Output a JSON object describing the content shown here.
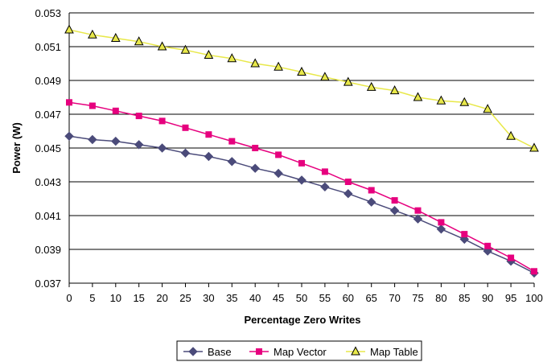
{
  "chart_data": {
    "type": "line",
    "title": "",
    "xlabel": "Percentage Zero Writes",
    "ylabel": "Power (W)",
    "x": [
      0,
      5,
      10,
      15,
      20,
      25,
      30,
      35,
      40,
      45,
      50,
      55,
      60,
      65,
      70,
      75,
      80,
      85,
      90,
      95,
      100
    ],
    "xlim": [
      0,
      100
    ],
    "ylim": [
      0.037,
      0.053
    ],
    "x_ticks": [
      "0",
      "5",
      "10",
      "15",
      "20",
      "25",
      "30",
      "35",
      "40",
      "45",
      "50",
      "55",
      "60",
      "65",
      "70",
      "75",
      "80",
      "85",
      "90",
      "95",
      "100"
    ],
    "y_ticks": [
      "0.037",
      "0.039",
      "0.041",
      "0.043",
      "0.045",
      "0.047",
      "0.049",
      "0.051",
      "0.053"
    ],
    "grid": "horizontal",
    "legend_position": "bottom",
    "series": [
      {
        "name": "Base",
        "color": "#4B4B7A",
        "marker": "diamond",
        "values": [
          0.0457,
          0.0455,
          0.0454,
          0.0452,
          0.045,
          0.0447,
          0.0445,
          0.0442,
          0.0438,
          0.0435,
          0.0431,
          0.0427,
          0.0423,
          0.0418,
          0.0413,
          0.0408,
          0.0402,
          0.0396,
          0.0389,
          0.0383,
          0.0376
        ]
      },
      {
        "name": "Map Vector",
        "color": "#E6007E",
        "marker": "square",
        "values": [
          0.0477,
          0.0475,
          0.0472,
          0.0469,
          0.0466,
          0.0462,
          0.0458,
          0.0454,
          0.045,
          0.0446,
          0.0441,
          0.0436,
          0.043,
          0.0425,
          0.0419,
          0.0413,
          0.0406,
          0.0399,
          0.0392,
          0.0385,
          0.0377
        ]
      },
      {
        "name": "Map Table",
        "color": "#E8E84A",
        "marker": "triangle",
        "values": [
          0.052,
          0.0517,
          0.0515,
          0.0513,
          0.051,
          0.0508,
          0.0505,
          0.0503,
          0.05,
          0.0498,
          0.0495,
          0.0492,
          0.0489,
          0.0486,
          0.0484,
          0.048,
          0.0478,
          0.0477,
          0.0473,
          0.0457,
          0.045
        ]
      }
    ]
  }
}
